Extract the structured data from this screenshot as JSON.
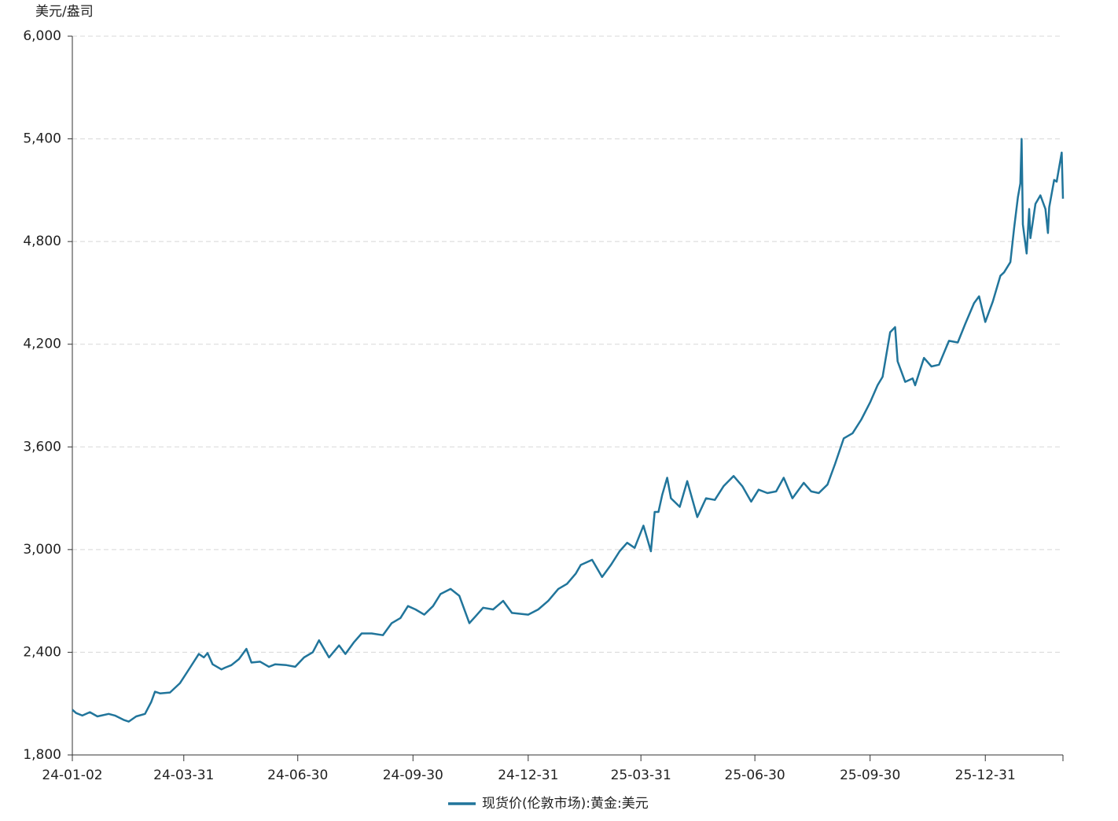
{
  "chart_data": {
    "type": "line",
    "y_label": "美元/盎司",
    "x": [
      "24-01-02",
      "24-01-05",
      "24-01-10",
      "24-01-16",
      "24-01-22",
      "24-01-31",
      "24-02-05",
      "24-02-12",
      "24-02-16",
      "24-02-22",
      "24-02-29",
      "24-03-05",
      "24-03-08",
      "24-03-12",
      "24-03-20",
      "24-03-28",
      "24-04-05",
      "24-04-12",
      "24-04-16",
      "24-04-19",
      "24-04-23",
      "24-04-30",
      "24-05-03",
      "24-05-08",
      "24-05-14",
      "24-05-20",
      "24-05-24",
      "24-05-31",
      "24-06-07",
      "24-06-12",
      "24-06-21",
      "24-06-28",
      "24-07-05",
      "24-07-12",
      "24-07-17",
      "24-07-25",
      "24-08-02",
      "24-08-07",
      "24-08-14",
      "24-08-20",
      "24-08-28",
      "24-09-06",
      "24-09-13",
      "24-09-20",
      "24-09-26",
      "24-10-02",
      "24-10-09",
      "24-10-16",
      "24-10-22",
      "24-10-30",
      "24-11-06",
      "24-11-14",
      "24-11-19",
      "24-11-25",
      "24-12-03",
      "24-12-11",
      "24-12-18",
      "24-12-31",
      "25-01-08",
      "25-01-16",
      "25-01-24",
      "25-01-31",
      "25-02-07",
      "25-02-11",
      "25-02-20",
      "25-02-28",
      "25-03-07",
      "25-03-14",
      "25-03-20",
      "25-03-26",
      "25-04-02",
      "25-04-08",
      "25-04-11",
      "25-04-14",
      "25-04-17",
      "25-04-21",
      "25-04-24",
      "25-05-01",
      "25-05-07",
      "25-05-15",
      "25-05-22",
      "25-05-29",
      "25-06-05",
      "25-06-13",
      "25-06-20",
      "25-06-27",
      "25-07-03",
      "25-07-10",
      "25-07-17",
      "25-07-23",
      "25-07-30",
      "25-08-08",
      "25-08-14",
      "25-08-20",
      "25-08-27",
      "25-09-02",
      "25-09-09",
      "25-09-16",
      "25-09-23",
      "25-09-30",
      "25-10-06",
      "25-10-10",
      "25-10-16",
      "25-10-20",
      "25-10-22",
      "25-10-28",
      "25-11-03",
      "25-11-05",
      "25-11-12",
      "25-11-18",
      "25-11-24",
      "25-12-02",
      "25-12-09",
      "25-12-15",
      "25-12-22",
      "25-12-26",
      "25-12-31",
      "26-01-06",
      "26-01-12",
      "26-01-15",
      "26-01-20",
      "26-01-23",
      "26-01-26",
      "26-01-28",
      "26-01-29",
      "26-01-30",
      "26-02-02",
      "26-02-04",
      "26-02-05",
      "26-02-09",
      "26-02-13",
      "26-02-17",
      "26-02-19",
      "26-02-20",
      "26-02-24",
      "26-02-26",
      "26-03-02",
      "26-03-03"
    ],
    "series": [
      {
        "name": "现货价(伦敦市场):黄金:美元",
        "color": "#21759b",
        "values": [
          2064,
          2045,
          2030,
          2050,
          2025,
          2040,
          2030,
          2005,
          1995,
          2025,
          2040,
          2110,
          2170,
          2160,
          2165,
          2220,
          2310,
          2390,
          2370,
          2395,
          2330,
          2300,
          2310,
          2325,
          2360,
          2420,
          2340,
          2345,
          2315,
          2330,
          2325,
          2315,
          2370,
          2400,
          2470,
          2370,
          2440,
          2390,
          2460,
          2510,
          2510,
          2500,
          2570,
          2600,
          2670,
          2650,
          2620,
          2670,
          2740,
          2770,
          2730,
          2570,
          2610,
          2660,
          2650,
          2700,
          2630,
          2620,
          2650,
          2700,
          2770,
          2800,
          2860,
          2910,
          2940,
          2840,
          2910,
          2990,
          3040,
          3010,
          3140,
          2990,
          3220,
          3220,
          3320,
          3420,
          3300,
          3250,
          3400,
          3190,
          3300,
          3290,
          3370,
          3430,
          3370,
          3280,
          3350,
          3330,
          3340,
          3420,
          3300,
          3390,
          3340,
          3330,
          3380,
          3500,
          3650,
          3680,
          3760,
          3860,
          3960,
          4010,
          4270,
          4300,
          4100,
          3980,
          4000,
          3960,
          4120,
          4070,
          4080,
          4220,
          4210,
          4320,
          4440,
          4480,
          4330,
          4450,
          4600,
          4620,
          4680,
          4880,
          5060,
          5140,
          5400,
          4900,
          4730,
          4990,
          4820,
          5020,
          5070,
          4990,
          4850,
          5000,
          5160,
          5150,
          5320,
          5050
        ]
      }
    ],
    "xlim": [
      "24-01-02",
      "26-03-03"
    ],
    "xticks": [
      "24-01-02",
      "24-03-31",
      "24-06-30",
      "24-09-30",
      "24-12-31",
      "25-03-31",
      "25-06-30",
      "25-09-30",
      "25-12-31"
    ],
    "ylim": [
      1800,
      6000
    ],
    "yticks": [
      {
        "value": 1800,
        "label": "1,800"
      },
      {
        "value": 2400,
        "label": "2,400"
      },
      {
        "value": 3000,
        "label": "3,000"
      },
      {
        "value": 3600,
        "label": "3,600"
      },
      {
        "value": 4200,
        "label": "4,200"
      },
      {
        "value": 4800,
        "label": "4,800"
      },
      {
        "value": 5400,
        "label": "5,400"
      },
      {
        "value": 6000,
        "label": "6,000"
      }
    ],
    "grid": true,
    "legend": "bottom"
  }
}
